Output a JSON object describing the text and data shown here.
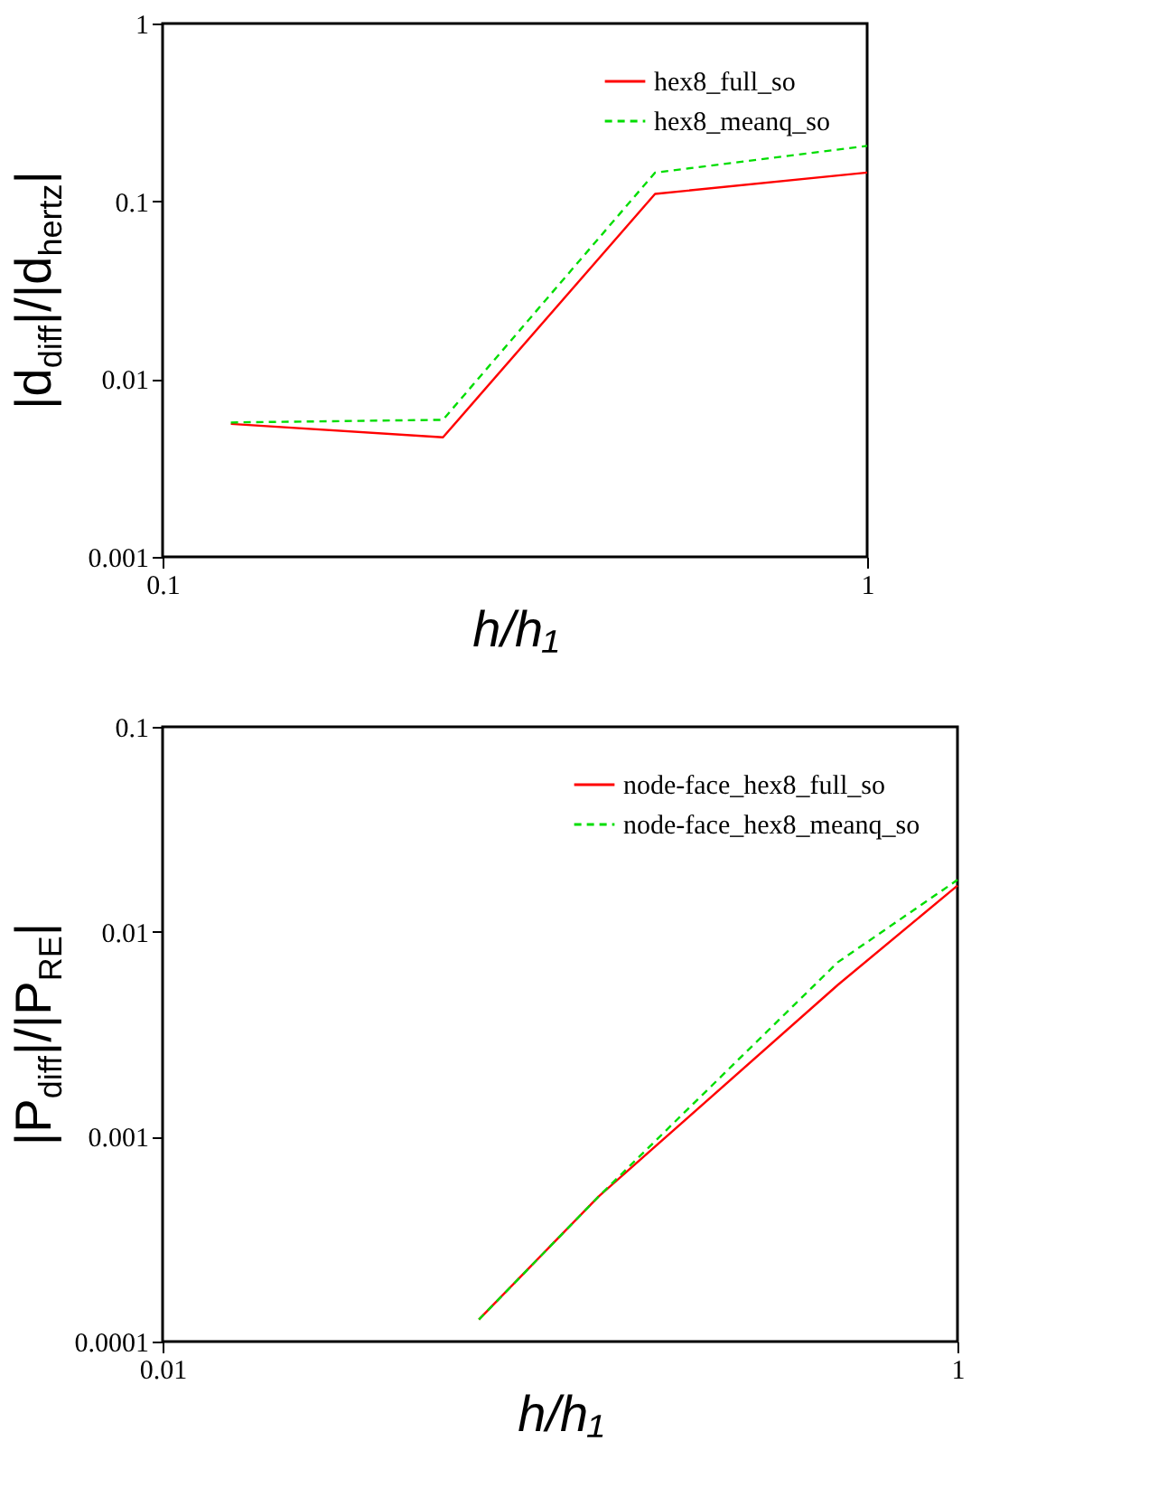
{
  "chart_data": [
    {
      "type": "line",
      "xlabel": "h/h₁",
      "ylabel": "|d$_{diff}$|/|d$_{hertz}$|",
      "log": "xy",
      "xlim": [
        0.1,
        1
      ],
      "xticks": [
        0.1,
        1
      ],
      "ylim": [
        0.001,
        1
      ],
      "yticks": [
        0.001,
        0.01,
        0.1,
        1
      ],
      "legend": "top right",
      "x": [
        0.125,
        0.25,
        0.5,
        1
      ],
      "series": [
        {
          "name": "hex8_full_so",
          "color": "#ff0000",
          "line_style": "solid",
          "values": [
            0.0056,
            0.0047,
            0.11,
            0.145
          ]
        },
        {
          "name": "hex8_meanq_so",
          "color": "#00dd00",
          "line_style": "dashed",
          "values": [
            0.0057,
            0.0059,
            0.145,
            0.205
          ]
        }
      ]
    },
    {
      "type": "line",
      "xlabel": "h/h₁",
      "ylabel": "|P$_{diff}$|/|P$_{RE}$|",
      "log": "xy",
      "xlim": [
        0.01,
        1
      ],
      "xticks": [
        0.01,
        1
      ],
      "ylim": [
        0.0001,
        0.1
      ],
      "yticks": [
        0.0001,
        0.001,
        0.01,
        0.1
      ],
      "legend": "top right",
      "x": [
        0.0625,
        0.125,
        0.5,
        1
      ],
      "series": [
        {
          "name": "node-face_hex8_full_so",
          "color": "#ff0000",
          "line_style": "solid",
          "values": [
            0.000128,
            0.00051,
            0.0055,
            0.0168
          ]
        },
        {
          "name": "node-face_hex8_meanq_so",
          "color": "#00dd00",
          "line_style": "dashed",
          "values": [
            0.000128,
            0.00051,
            0.0071,
            0.0179
          ]
        }
      ]
    }
  ]
}
